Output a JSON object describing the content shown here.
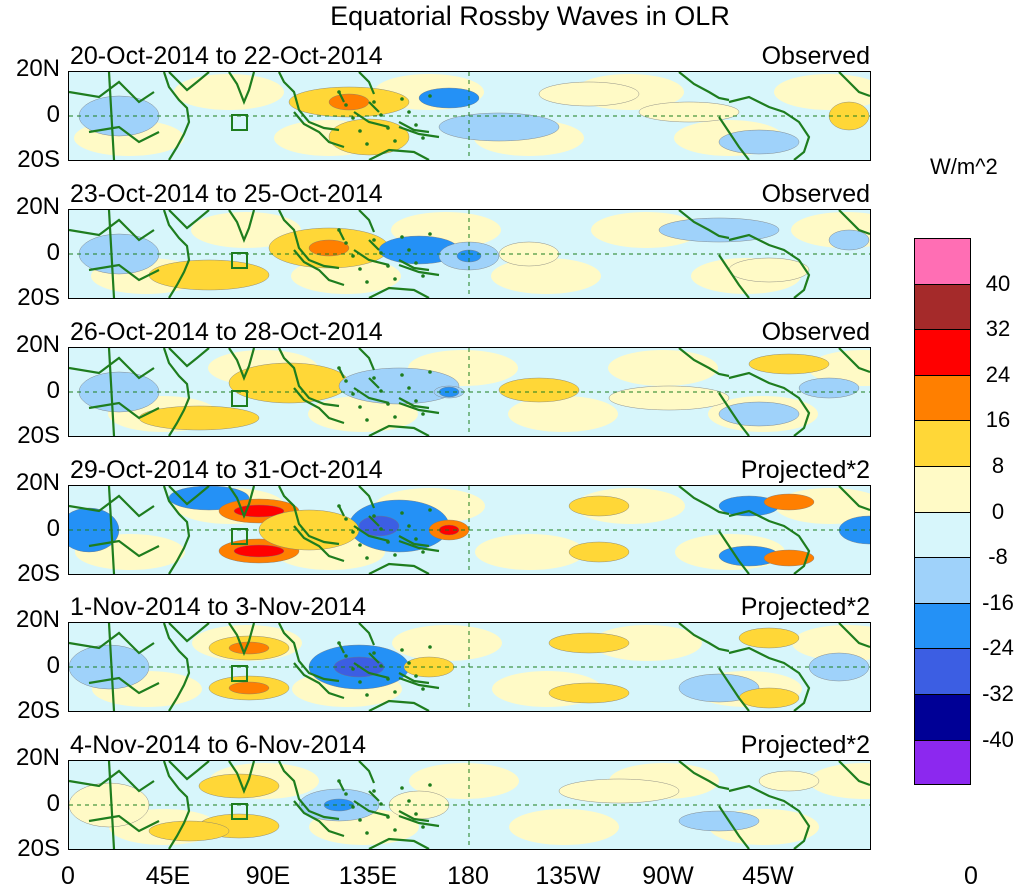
{
  "title": "Equatorial Rossby Waves in OLR",
  "latitude_labels": [
    "20N",
    "0",
    "20S"
  ],
  "longitude_labels": [
    "0",
    "45E",
    "90E",
    "135E",
    "180",
    "135W",
    "90W",
    "45W",
    "0"
  ],
  "panels": [
    {
      "date_range": "20-Oct-2014 to 22-Oct-2014",
      "type": "Observed"
    },
    {
      "date_range": "23-Oct-2014 to 25-Oct-2014",
      "type": "Observed"
    },
    {
      "date_range": "26-Oct-2014 to 28-Oct-2014",
      "type": "Observed"
    },
    {
      "date_range": "29-Oct-2014 to 31-Oct-2014",
      "type": "Projected*2"
    },
    {
      "date_range": "1-Nov-2014 to 3-Nov-2014",
      "type": "Projected*2"
    },
    {
      "date_range": "4-Nov-2014 to 6-Nov-2014",
      "type": "Projected*2"
    }
  ],
  "colorbar": {
    "units": "W/m^2",
    "labels": [
      "40",
      "32",
      "24",
      "16",
      "8",
      "0",
      "-8",
      "-16",
      "-24",
      "-32",
      "-40"
    ],
    "colors": [
      "#ff6eb4",
      "#a52a2a",
      "#ff0000",
      "#ff7f00",
      "#ffd737",
      "#fffac6",
      "#d7f6fb",
      "#9fd2fa",
      "#2491f6",
      "#3c5ee3",
      "#000096",
      "#8c28ef"
    ]
  },
  "colors": {
    "coastline": "#1e7d1e",
    "neutral_positive": "#fffac6",
    "neutral_negative": "#d7f6fb"
  }
}
